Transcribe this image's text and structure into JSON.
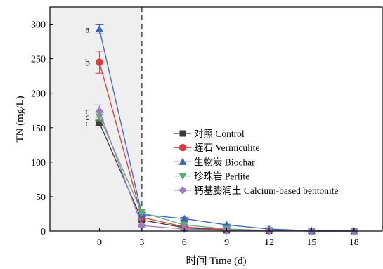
{
  "chart_data": {
    "type": "line",
    "xlabel": "时间 Time (d)",
    "ylabel": "TN (mg/L)",
    "x": [
      0,
      3,
      6,
      9,
      12,
      15,
      18
    ],
    "xticks": [
      0,
      3,
      6,
      9,
      12,
      15,
      18
    ],
    "yticks": [
      0,
      50,
      100,
      150,
      200,
      250,
      300
    ],
    "xlim": [
      -3.5,
      20
    ],
    "ylim": [
      0,
      325
    ],
    "shaded_region": [
      -3.5,
      3
    ],
    "divider_x": 3,
    "grid": false,
    "legend_position": "center-right",
    "series": [
      {
        "name": "对照 Control",
        "color": "#3a3a3a",
        "marker": "square",
        "values": [
          157,
          16,
          5,
          1,
          0.5,
          0,
          0
        ],
        "errors": [
          4,
          2,
          1,
          0.5,
          0.5,
          0,
          0
        ],
        "sig": "c"
      },
      {
        "name": "蛭石 Vermiculite",
        "color": "#e0383f",
        "marker": "circle",
        "values": [
          245,
          20,
          6,
          2,
          1,
          0,
          0
        ],
        "errors": [
          16,
          3,
          1,
          0.5,
          0.5,
          0,
          0
        ],
        "sig": "b"
      },
      {
        "name": "生物炭 Biochar",
        "color": "#3a66b8",
        "marker": "triangle-up",
        "values": [
          293,
          24,
          18,
          9,
          3,
          0.5,
          0
        ],
        "errors": [
          7,
          3,
          2,
          1,
          1,
          0.5,
          0
        ],
        "sig": "a"
      },
      {
        "name": "珍珠岩 Perlite",
        "color": "#5fa878",
        "marker": "triangle-down",
        "values": [
          166,
          27,
          9,
          3,
          1,
          0,
          0
        ],
        "errors": [
          6,
          5,
          1,
          1,
          0.5,
          0,
          0
        ],
        "sig": "c"
      },
      {
        "name": "钙基膨润土 Calcium-based bentonite",
        "color": "#9b7bbf",
        "marker": "diamond",
        "values": [
          174,
          8,
          3,
          1,
          0.5,
          0,
          0
        ],
        "errors": [
          9,
          2,
          1,
          0.5,
          0.5,
          0,
          0
        ],
        "sig": "c"
      }
    ]
  }
}
